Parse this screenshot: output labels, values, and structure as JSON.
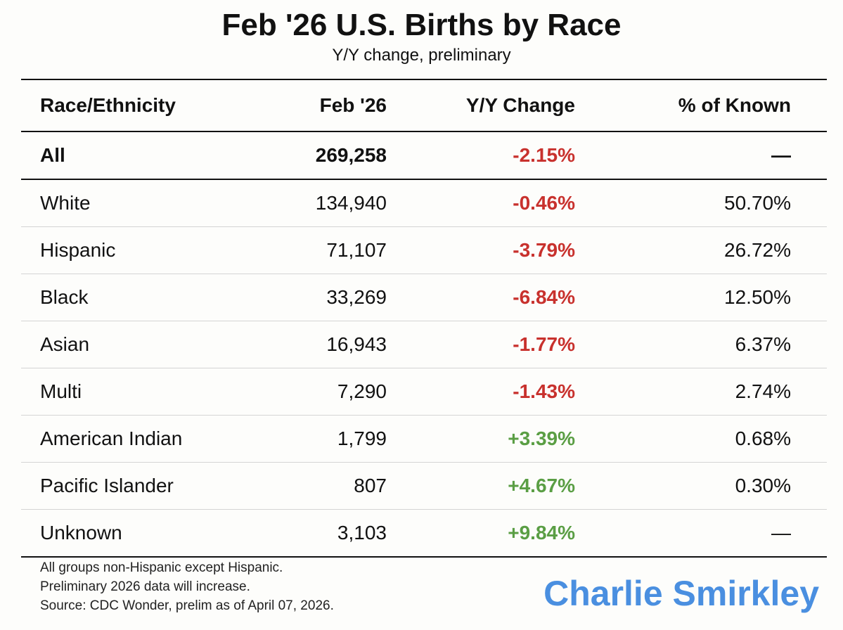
{
  "title": "Feb '26 U.S. Births by Race",
  "subtitle": "Y/Y change, preliminary",
  "chart_data": {
    "type": "table",
    "title": "Feb '26 U.S. Births by Race",
    "subtitle": "Y/Y change, preliminary",
    "columns": [
      "Race/Ethnicity",
      "Feb '26",
      "Y/Y Change",
      "% of Known"
    ],
    "rows": [
      {
        "name": "All",
        "feb": "269,258",
        "yoy": "-2.15%",
        "pct": "—",
        "trend": "neg"
      },
      {
        "name": "White",
        "feb": "134,940",
        "yoy": "-0.46%",
        "pct": "50.70%",
        "trend": "neg"
      },
      {
        "name": "Hispanic",
        "feb": "71,107",
        "yoy": "-3.79%",
        "pct": "26.72%",
        "trend": "neg"
      },
      {
        "name": "Black",
        "feb": "33,269",
        "yoy": "-6.84%",
        "pct": "12.50%",
        "trend": "neg"
      },
      {
        "name": "Asian",
        "feb": "16,943",
        "yoy": "-1.77%",
        "pct": "6.37%",
        "trend": "neg"
      },
      {
        "name": "Multi",
        "feb": "7,290",
        "yoy": "-1.43%",
        "pct": "2.74%",
        "trend": "neg"
      },
      {
        "name": "American Indian",
        "feb": "1,799",
        "yoy": "+3.39%",
        "pct": "0.68%",
        "trend": "pos"
      },
      {
        "name": "Pacific Islander",
        "feb": "807",
        "yoy": "+4.67%",
        "pct": "0.30%",
        "trend": "pos"
      },
      {
        "name": "Unknown",
        "feb": "3,103",
        "yoy": "+9.84%",
        "pct": "—",
        "trend": "pos"
      }
    ]
  },
  "colors": {
    "negative": "#c8312d",
    "positive": "#5a9e44",
    "brand": "#4a8fe0"
  },
  "notes": [
    "All groups non-Hispanic except Hispanic.",
    "Preliminary 2026 data will increase.",
    "Source: CDC Wonder, prelim as of April 07, 2026."
  ],
  "brand": "Charlie Smirkley"
}
